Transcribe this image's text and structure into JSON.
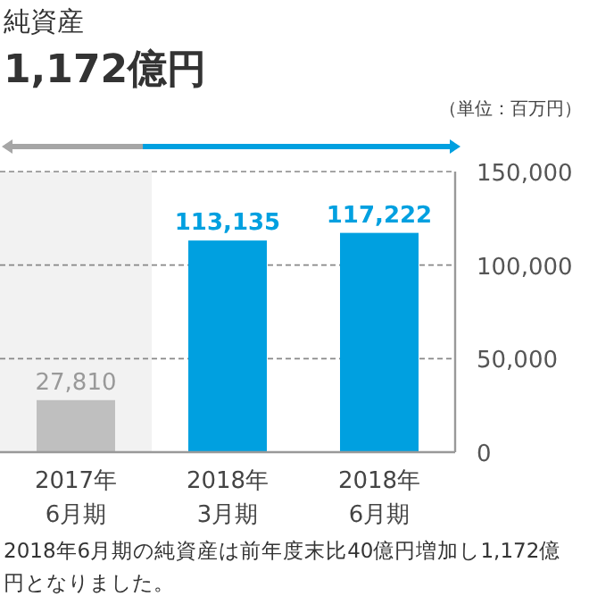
{
  "chart_data": {
    "type": "bar",
    "title": "純資産",
    "subtitle": "1,172億円",
    "categories": [
      "2017年 6月期",
      "2018年 3月期",
      "2018年 6月期"
    ],
    "values": [
      27810,
      113135,
      117222
    ],
    "colors": [
      "#bfbfbf",
      "#00a0e0",
      "#00a0e0"
    ],
    "value_labels": [
      "27,810",
      "113,135",
      "117,222"
    ],
    "ylim": [
      0,
      150000
    ],
    "yticks": [
      0,
      {
        "value": 50000,
        "label": "50,000"
      },
      {
        "value": 100000,
        "label": "100,000"
      },
      {
        "value": 150000,
        "label": "150,000"
      }
    ],
    "grid": "y",
    "bands": [
      {
        "axis": "x",
        "from": "2017年 6月期",
        "to": "2017年 6月期",
        "color": "#f2f2f2"
      }
    ],
    "annotations": [
      "（単位：百万円）",
      "2018年6月期の純資産は前年度末比40億円増加し1,172億円となりました。"
    ]
  }
}
